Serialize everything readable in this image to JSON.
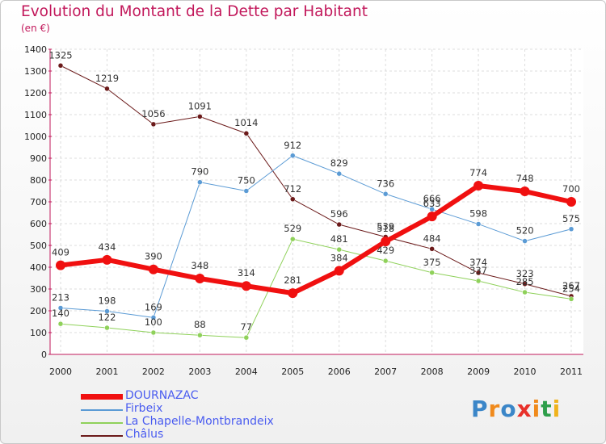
{
  "chart_data": {
    "type": "line",
    "title": "Evolution du Montant de la Dette par Habitant",
    "subtitle": "(en €)",
    "categories": [
      "2000",
      "2001",
      "2002",
      "2003",
      "2004",
      "2005",
      "2006",
      "2007",
      "2008",
      "2009",
      "2010",
      "2011"
    ],
    "ylim": [
      0,
      1400
    ],
    "yticks": [
      "0",
      "100",
      "200",
      "300",
      "400",
      "500",
      "600",
      "700",
      "800",
      "900",
      "1000",
      "1100",
      "1200",
      "1300",
      "1400"
    ],
    "grid": true,
    "legend_position": "bottom-left",
    "series": [
      {
        "name": "Châlus",
        "color": "#6b1a1a",
        "values": [
          1325,
          1219,
          1056,
          1091,
          1014,
          712,
          596,
          539,
          484,
          374,
          323,
          267
        ],
        "width": 1
      },
      {
        "name": "Firbeix",
        "color": "#5b9bd5",
        "values": [
          213,
          198,
          169,
          790,
          750,
          912,
          829,
          736,
          666,
          598,
          520,
          575
        ],
        "width": 1
      },
      {
        "name": "La Chapelle-Montbrandeix",
        "color": "#8fd15a",
        "values": [
          140,
          122,
          100,
          88,
          77,
          529,
          481,
          429,
          375,
          337,
          285,
          254
        ],
        "width": 1
      },
      {
        "name": "DOURNAZAC",
        "color": "#f01010",
        "values": [
          409,
          434,
          390,
          348,
          314,
          281,
          384,
          518,
          633,
          774,
          748,
          700
        ],
        "width": 6
      }
    ]
  },
  "legend": {
    "items": [
      {
        "label": "DOURNAZAC",
        "color": "#f01010"
      },
      {
        "label": "Firbeix",
        "color": "#5b9bd5"
      },
      {
        "label": "La Chapelle-Montbrandeix",
        "color": "#8fd15a"
      },
      {
        "label": "Châlus",
        "color": "#6b1a1a"
      }
    ]
  },
  "logo": {
    "text": "Proxiti"
  }
}
